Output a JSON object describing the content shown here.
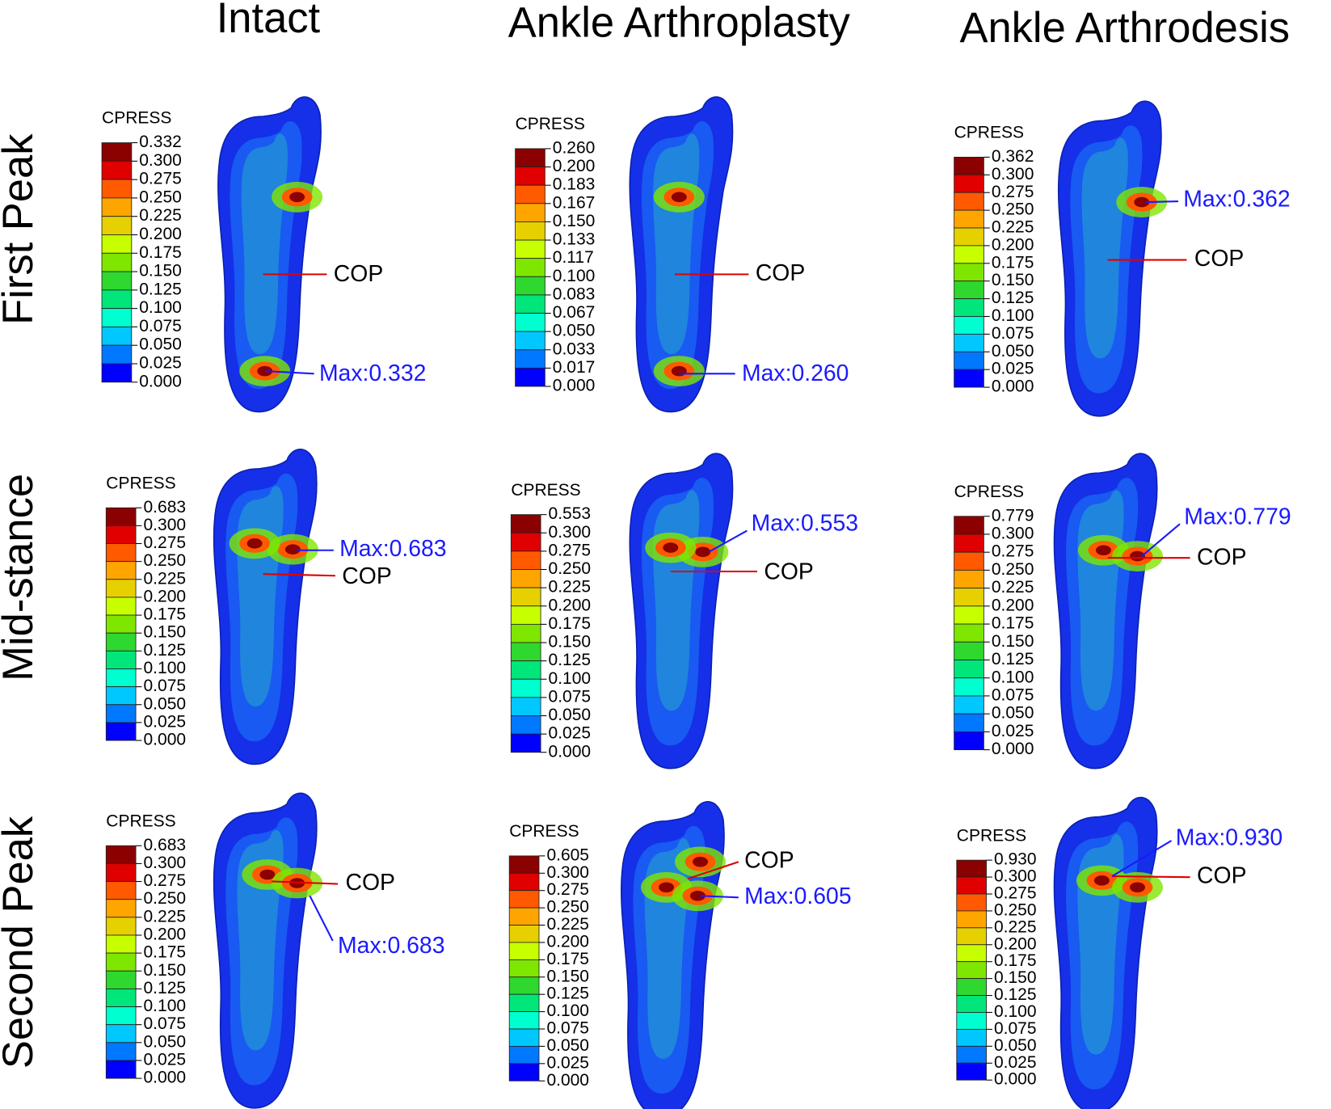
{
  "columns": [
    "Intact",
    "Ankle Arthroplasty",
    "Ankle Arthrodesis"
  ],
  "rows": [
    "First Peak",
    "Mid-stance",
    "Second Peak"
  ],
  "panels": [
    [
      {
        "legend_title": "CPRESS",
        "legend_labels": [
          "0.332",
          "0.300",
          "0.275",
          "0.250",
          "0.225",
          "0.200",
          "0.175",
          "0.150",
          "0.125",
          "0.100",
          "0.075",
          "0.050",
          "0.025",
          "0.000"
        ],
        "cop": "COP",
        "max": "Max:0.332"
      },
      {
        "legend_title": "CPRESS",
        "legend_labels": [
          "0.260",
          "0.200",
          "0.183",
          "0.167",
          "0.150",
          "0.133",
          "0.117",
          "0.100",
          "0.083",
          "0.067",
          "0.050",
          "0.033",
          "0.017",
          "0.000"
        ],
        "cop": "COP",
        "max": "Max:0.260"
      },
      {
        "legend_title": "CPRESS",
        "legend_labels": [
          "0.362",
          "0.300",
          "0.275",
          "0.250",
          "0.225",
          "0.200",
          "0.175",
          "0.150",
          "0.125",
          "0.100",
          "0.075",
          "0.050",
          "0.025",
          "0.000"
        ],
        "cop": "COP",
        "max": "Max:0.362"
      }
    ],
    [
      {
        "legend_title": "CPRESS",
        "legend_labels": [
          "0.683",
          "0.300",
          "0.275",
          "0.250",
          "0.225",
          "0.200",
          "0.175",
          "0.150",
          "0.125",
          "0.100",
          "0.075",
          "0.050",
          "0.025",
          "0.000"
        ],
        "cop": "COP",
        "max": "Max:0.683"
      },
      {
        "legend_title": "CPRESS",
        "legend_labels": [
          "0.553",
          "0.300",
          "0.275",
          "0.250",
          "0.225",
          "0.200",
          "0.175",
          "0.150",
          "0.125",
          "0.100",
          "0.075",
          "0.050",
          "0.025",
          "0.000"
        ],
        "cop": "COP",
        "max": "Max:0.553"
      },
      {
        "legend_title": "CPRESS",
        "legend_labels": [
          "0.779",
          "0.300",
          "0.275",
          "0.250",
          "0.225",
          "0.200",
          "0.175",
          "0.150",
          "0.125",
          "0.100",
          "0.075",
          "0.050",
          "0.025",
          "0.000"
        ],
        "cop": "COP",
        "max": "Max:0.779"
      }
    ],
    [
      {
        "legend_title": "CPRESS",
        "legend_labels": [
          "0.683",
          "0.300",
          "0.275",
          "0.250",
          "0.225",
          "0.200",
          "0.175",
          "0.150",
          "0.125",
          "0.100",
          "0.075",
          "0.050",
          "0.025",
          "0.000"
        ],
        "cop": "COP",
        "max": "Max:0.683"
      },
      {
        "legend_title": "CPRESS",
        "legend_labels": [
          "0.605",
          "0.300",
          "0.275",
          "0.250",
          "0.225",
          "0.200",
          "0.175",
          "0.150",
          "0.125",
          "0.100",
          "0.075",
          "0.050",
          "0.025",
          "0.000"
        ],
        "cop": "COP",
        "max": "Max:0.605"
      },
      {
        "legend_title": "CPRESS",
        "legend_labels": [
          "0.930",
          "0.300",
          "0.275",
          "0.250",
          "0.225",
          "0.200",
          "0.175",
          "0.150",
          "0.125",
          "0.100",
          "0.075",
          "0.050",
          "0.025",
          "0.000"
        ],
        "cop": "COP",
        "max": "Max:0.930"
      }
    ]
  ]
}
